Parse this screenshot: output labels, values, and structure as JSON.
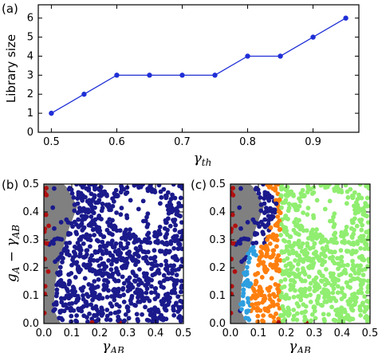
{
  "chart_data": [
    {
      "panel": "(a)",
      "type": "line",
      "x": [
        0.5,
        0.55,
        0.6,
        0.65,
        0.7,
        0.75,
        0.8,
        0.85,
        0.9,
        0.95
      ],
      "y": [
        1,
        2,
        3,
        3,
        3,
        3,
        4,
        4,
        5,
        6
      ],
      "xlim": [
        0.48,
        0.97
      ],
      "ylim": [
        0,
        6.7
      ],
      "xticks": [
        "0.5",
        "0.6",
        "0.7",
        "0.8",
        "0.9"
      ],
      "yticks": [
        "0",
        "1",
        "2",
        "3",
        "4",
        "5",
        "6"
      ],
      "xlabel": "γth",
      "ylabel": "Library size",
      "color": "#1f2fd6",
      "grid": false
    },
    {
      "panel": "(b)",
      "type": "scatter",
      "xlim": [
        0,
        0.5
      ],
      "ylim": [
        0,
        0.5
      ],
      "xticks": [
        "0.0",
        "0.1",
        "0.2",
        "0.3",
        "0.4",
        "0.5"
      ],
      "yticks": [
        "0.0",
        "0.1",
        "0.2",
        "0.3",
        "0.4",
        "0.5"
      ],
      "xlabel": "γAB",
      "ylabel": "gA − γAB",
      "region_gray": [
        [
          0,
          0
        ],
        [
          0,
          0.5
        ],
        [
          0.075,
          0.5
        ],
        [
          0.12,
          0.42
        ],
        [
          0.09,
          0.34
        ],
        [
          0.06,
          0.24
        ],
        [
          0.04,
          0.14
        ],
        [
          0.035,
          0.05
        ],
        [
          0.06,
          0
        ]
      ],
      "series": [
        {
          "color": "#1a1a8c",
          "approx_points": 900,
          "region": "x>0.02, outside gray"
        },
        {
          "color": "#b01010",
          "approx_points": 25,
          "region": "x<0.02 or y<0.01"
        }
      ],
      "colors": {
        "gray": "#808080",
        "navy": "#1a1a8c",
        "red": "#b01010"
      }
    },
    {
      "panel": "(c)",
      "type": "scatter",
      "xlim": [
        0,
        0.5
      ],
      "ylim": [
        0,
        0.5
      ],
      "xticks": [
        "0.0",
        "0.1",
        "0.2",
        "0.3",
        "0.4",
        "0.5"
      ],
      "yticks": [
        "0.0",
        "0.1",
        "0.2",
        "0.3",
        "0.4",
        "0.5"
      ],
      "xlabel": "γAB",
      "series": [
        {
          "color": "#1a1a8c",
          "region": "band near gray region, y>0.28"
        },
        {
          "color": "#2e9fe0",
          "region": "0.02<x<0.1, y<0.35"
        },
        {
          "color": "#ff7f0e",
          "region": "border band x≈0.08–0.18"
        },
        {
          "color": "#90ee70",
          "region": "x>0.18"
        },
        {
          "color": "#b01010",
          "region": "x<0.02 or y<0.01"
        },
        {
          "color": "#808080",
          "region": "gray wedge near y-axis"
        }
      ]
    }
  ],
  "panel_labels": {
    "a": "(a)",
    "b": "(b)",
    "c": "(c)"
  },
  "text": {
    "a_xlabel_main": "γ",
    "a_xlabel_sub": "th",
    "a_ylabel": "Library size",
    "bc_xlabel_main": "γ",
    "bc_xlabel_sub": "AB",
    "b_ylabel_g": "g",
    "b_ylabel_gsub": "A",
    "b_ylabel_minus": " − γ",
    "b_ylabel_sub2": "AB"
  }
}
